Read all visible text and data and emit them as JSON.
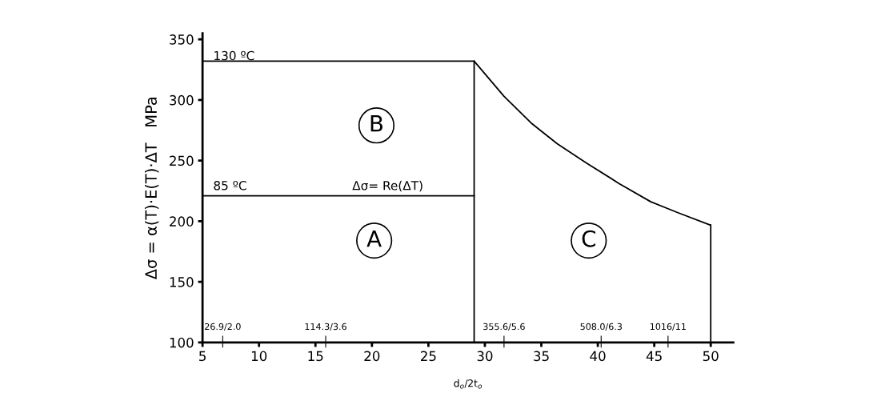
{
  "chart_data": {
    "type": "line",
    "xlabel": "d$_{o}$/2t$_{o}$",
    "ylabel": "Δσ = α(T)·E(T)·ΔT   MPa",
    "series": [
      {
        "color": "#000000",
        "x": [
          5,
          29.05,
          31.7,
          34.1,
          36.4,
          39.0,
          41.9,
          44.7,
          47.1,
          49.9,
          50,
          50
        ],
        "values": [
          332,
          332,
          303,
          281,
          264,
          248,
          231,
          216,
          207,
          197,
          197,
          100
        ]
      },
      {
        "color": "#000000",
        "x": [
          5,
          29.05
        ],
        "values": [
          221,
          221
        ]
      },
      {
        "color": "#000000",
        "x": [
          29.05,
          29.05
        ],
        "values": [
          100,
          332
        ]
      }
    ],
    "xlim": [
      5,
      52
    ],
    "ylim": [
      100,
      355
    ],
    "xticks": [
      5,
      10,
      15,
      20,
      25,
      30,
      35,
      40,
      45,
      50
    ],
    "yticks": [
      100,
      150,
      200,
      250,
      300,
      350
    ],
    "grid": false,
    "marker": "none",
    "line_style": "solid",
    "annotations": [
      "130 ºC",
      "85 ºC",
      "Δσ= Re(ΔT)",
      {
        "text": "A",
        "x": 20.2,
        "y": 184
      },
      {
        "text": "B",
        "x": 20.4,
        "y": 279
      },
      {
        "text": "C",
        "x": 39.2,
        "y": 184
      },
      "26.9/2.0",
      "114.3/3.6",
      "355.6/5.6",
      "508.0/6.3",
      "1016/11"
    ]
  }
}
